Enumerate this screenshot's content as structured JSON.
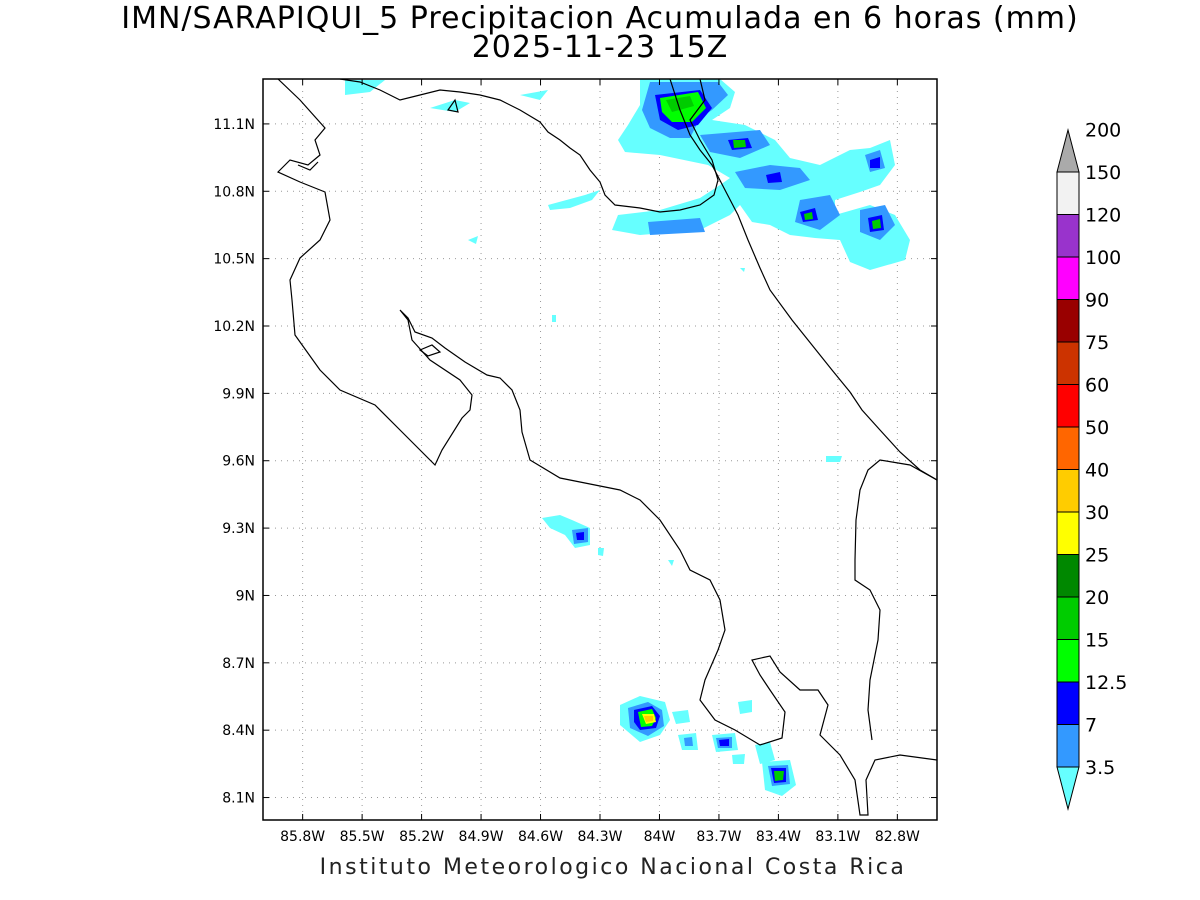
{
  "title": {
    "line1": "IMN/SARAPIQUI_5 Precipitacion Acumulada en 6 horas (mm)",
    "line2": "2025-11-23 15Z"
  },
  "footer": "Instituto Meteorologico Nacional Costa Rica",
  "map": {
    "lon_range": [
      -86.0,
      -82.6
    ],
    "lat_range": [
      8.0,
      11.3
    ],
    "x_ticks": [
      {
        "value": -85.8,
        "label": "85.8W"
      },
      {
        "value": -85.5,
        "label": "85.5W"
      },
      {
        "value": -85.2,
        "label": "85.2W"
      },
      {
        "value": -84.9,
        "label": "84.9W"
      },
      {
        "value": -84.6,
        "label": "84.6W"
      },
      {
        "value": -84.3,
        "label": "84.3W"
      },
      {
        "value": -84.0,
        "label": "84W"
      },
      {
        "value": -83.7,
        "label": "83.7W"
      },
      {
        "value": -83.4,
        "label": "83.4W"
      },
      {
        "value": -83.1,
        "label": "83.1W"
      },
      {
        "value": -82.8,
        "label": "82.8W"
      }
    ],
    "y_ticks": [
      {
        "value": 11.1,
        "label": "11.1N"
      },
      {
        "value": 10.8,
        "label": "10.8N"
      },
      {
        "value": 10.5,
        "label": "10.5N"
      },
      {
        "value": 10.2,
        "label": "10.2N"
      },
      {
        "value": 9.9,
        "label": "9.9N"
      },
      {
        "value": 9.6,
        "label": "9.6N"
      },
      {
        "value": 9.3,
        "label": "9.3N"
      },
      {
        "value": 9.0,
        "label": "9N"
      },
      {
        "value": 8.7,
        "label": "8.7N"
      },
      {
        "value": 8.4,
        "label": "8.4N"
      },
      {
        "value": 8.1,
        "label": "8.1N"
      }
    ],
    "grid": true
  },
  "colorbar": {
    "levels": [
      {
        "label": "3.5",
        "color": "#66ffff"
      },
      {
        "label": "7",
        "color": "#3399ff"
      },
      {
        "label": "12.5",
        "color": "#0000ff"
      },
      {
        "label": "15",
        "color": "#00ff00"
      },
      {
        "label": "20",
        "color": "#00cc00"
      },
      {
        "label": "25",
        "color": "#008800"
      },
      {
        "label": "30",
        "color": "#ffff00"
      },
      {
        "label": "40",
        "color": "#ffcc00"
      },
      {
        "label": "50",
        "color": "#ff6600"
      },
      {
        "label": "60",
        "color": "#ff0000"
      },
      {
        "label": "75",
        "color": "#cc3300"
      },
      {
        "label": "90",
        "color": "#990000"
      },
      {
        "label": "100",
        "color": "#ff00ff"
      },
      {
        "label": "120",
        "color": "#9933cc"
      },
      {
        "label": "150",
        "color": "#f2f2f2"
      },
      {
        "label": "200",
        "color": "#aaaaaa"
      }
    ]
  }
}
